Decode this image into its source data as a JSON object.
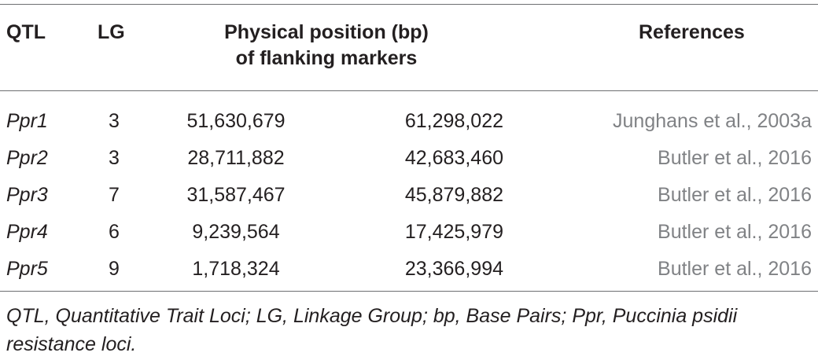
{
  "header": {
    "qtl": "QTL",
    "lg": "LG",
    "position_line1": "Physical position (bp)",
    "position_line2": "of flanking markers",
    "references": "References"
  },
  "rows": [
    {
      "qtl": "Ppr1",
      "lg": "3",
      "start": "51,630,679",
      "end": "61,298,022",
      "reference": "Junghans et al., 2003a"
    },
    {
      "qtl": "Ppr2",
      "lg": "3",
      "start": "28,711,882",
      "end": "42,683,460",
      "reference": "Butler et al., 2016"
    },
    {
      "qtl": "Ppr3",
      "lg": "7",
      "start": "31,587,467",
      "end": "45,879,882",
      "reference": "Butler et al., 2016"
    },
    {
      "qtl": "Ppr4",
      "lg": "6",
      "start": "9,239,564",
      "end": "17,425,979",
      "reference": "Butler et al., 2016"
    },
    {
      "qtl": "Ppr5",
      "lg": "9",
      "start": "1,718,324",
      "end": "23,366,994",
      "reference": "Butler et al., 2016"
    }
  ],
  "footnote": "QTL, Quantitative Trait Loci; LG, Linkage Group; bp, Base Pairs; Ppr, Puccinia psidii resistance loci.",
  "colors": {
    "text": "#231f20",
    "reference_text": "#808285",
    "rule": "#6d6e71"
  }
}
